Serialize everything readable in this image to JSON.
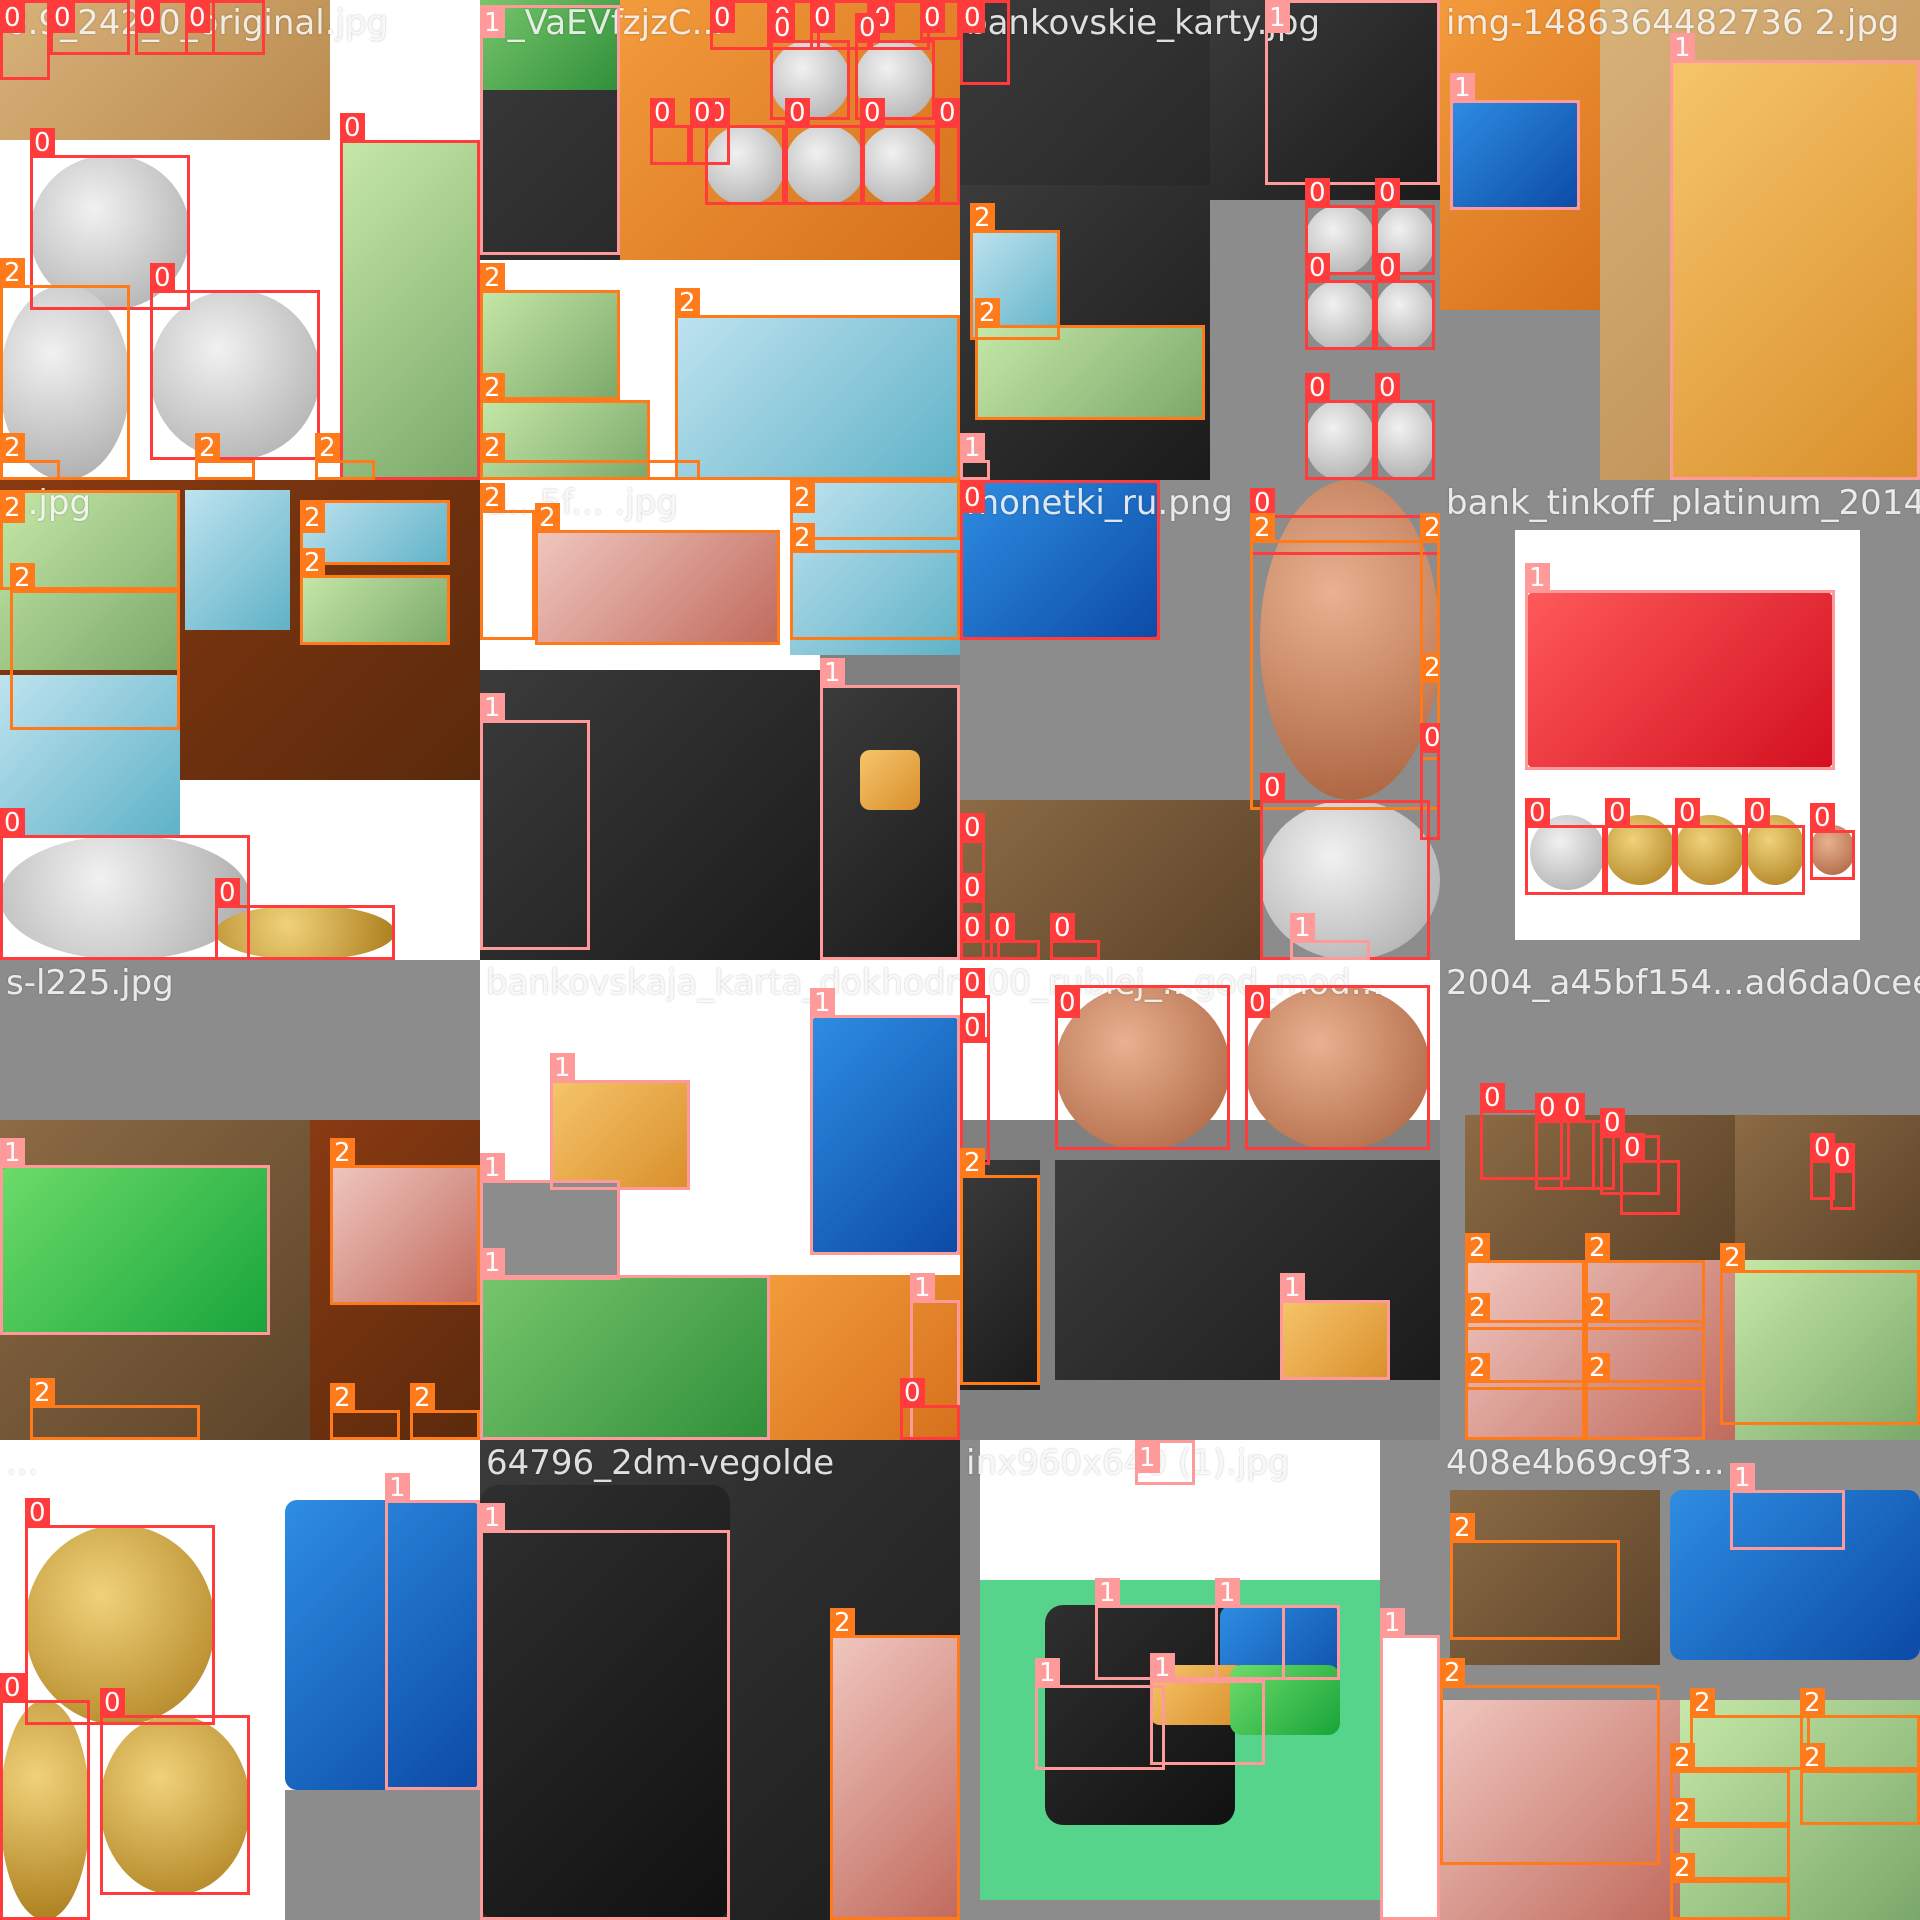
{
  "class_labels": [
    "0",
    "1",
    "2"
  ],
  "class_colors": {
    "0": "#ff3b3b",
    "1": "#ff9a9a",
    "2": "#ff7a1a"
  },
  "tiles": [
    {
      "filename": "0.9_242_0_original.jpg",
      "detections": [
        "0",
        "0",
        "0",
        "0",
        "0",
        "2",
        "0",
        "0",
        "2",
        "2",
        "2"
      ]
    },
    {
      "filename": "1_VaEVfzjzC...",
      "detections": [
        "1",
        "0",
        "0",
        "0",
        "0",
        "0",
        "0",
        "0",
        "0",
        "0",
        "0",
        "0",
        "0",
        "0",
        "2",
        "2",
        "2",
        "2"
      ]
    },
    {
      "filename": "bankovskie_karty.jpg",
      "detections": [
        "0",
        "1",
        "2",
        "2",
        "0",
        "0",
        "0",
        "0",
        "0",
        "0",
        "1"
      ]
    },
    {
      "filename": "img-1486364482736 2.jpg",
      "detections": [
        "1",
        "1"
      ]
    },
    {
      "filename": "...jpg",
      "detections": [
        "2",
        "2",
        "2",
        "2",
        "0",
        "0"
      ]
    },
    {
      "filename": "d...5f... .jpg",
      "detections": [
        "2",
        "2",
        "2",
        "2",
        "1",
        "1"
      ]
    },
    {
      "filename": "monetki_ru.png",
      "detections": [
        "0",
        "0",
        "2",
        "2",
        "2",
        "0",
        "0",
        "0",
        "0",
        "0",
        "0",
        "0",
        "1"
      ]
    },
    {
      "filename": "bank_tinkoff_platinum_2014",
      "detections": [
        "1",
        "0",
        "0",
        "0",
        "0",
        "0"
      ]
    },
    {
      "filename": "s-l225.jpg",
      "detections": [
        "1",
        "2",
        "2",
        "2",
        "2"
      ]
    },
    {
      "filename": "bankovskaja_karta_dokhodn...",
      "detections": [
        "1",
        "1",
        "1",
        "1",
        "1",
        "0"
      ]
    },
    {
      "filename": "100_rublej_...god_mod...",
      "detections": [
        "0",
        "0",
        "0",
        "0",
        "2",
        "1"
      ]
    },
    {
      "filename": "2004_a45bf154...ad6da0cee",
      "detections": [
        "0",
        "0",
        "0",
        "0",
        "0",
        "0",
        "0",
        "2",
        "2",
        "2",
        "2",
        "2",
        "2",
        "2"
      ]
    },
    {
      "filename": "...",
      "detections": [
        "0",
        "0",
        "0",
        "1"
      ]
    },
    {
      "filename": "64796_2dm-vegolde",
      "detections": [
        "1",
        "2"
      ]
    },
    {
      "filename": "inx960x640 (1).jpg",
      "detections": [
        "1",
        "1",
        "1",
        "1",
        "1",
        "1"
      ]
    },
    {
      "filename": "408e4b69c9f3...",
      "detections": [
        "2",
        "2",
        "1",
        "2",
        "2",
        "2",
        "2",
        "2",
        "2"
      ]
    }
  ]
}
